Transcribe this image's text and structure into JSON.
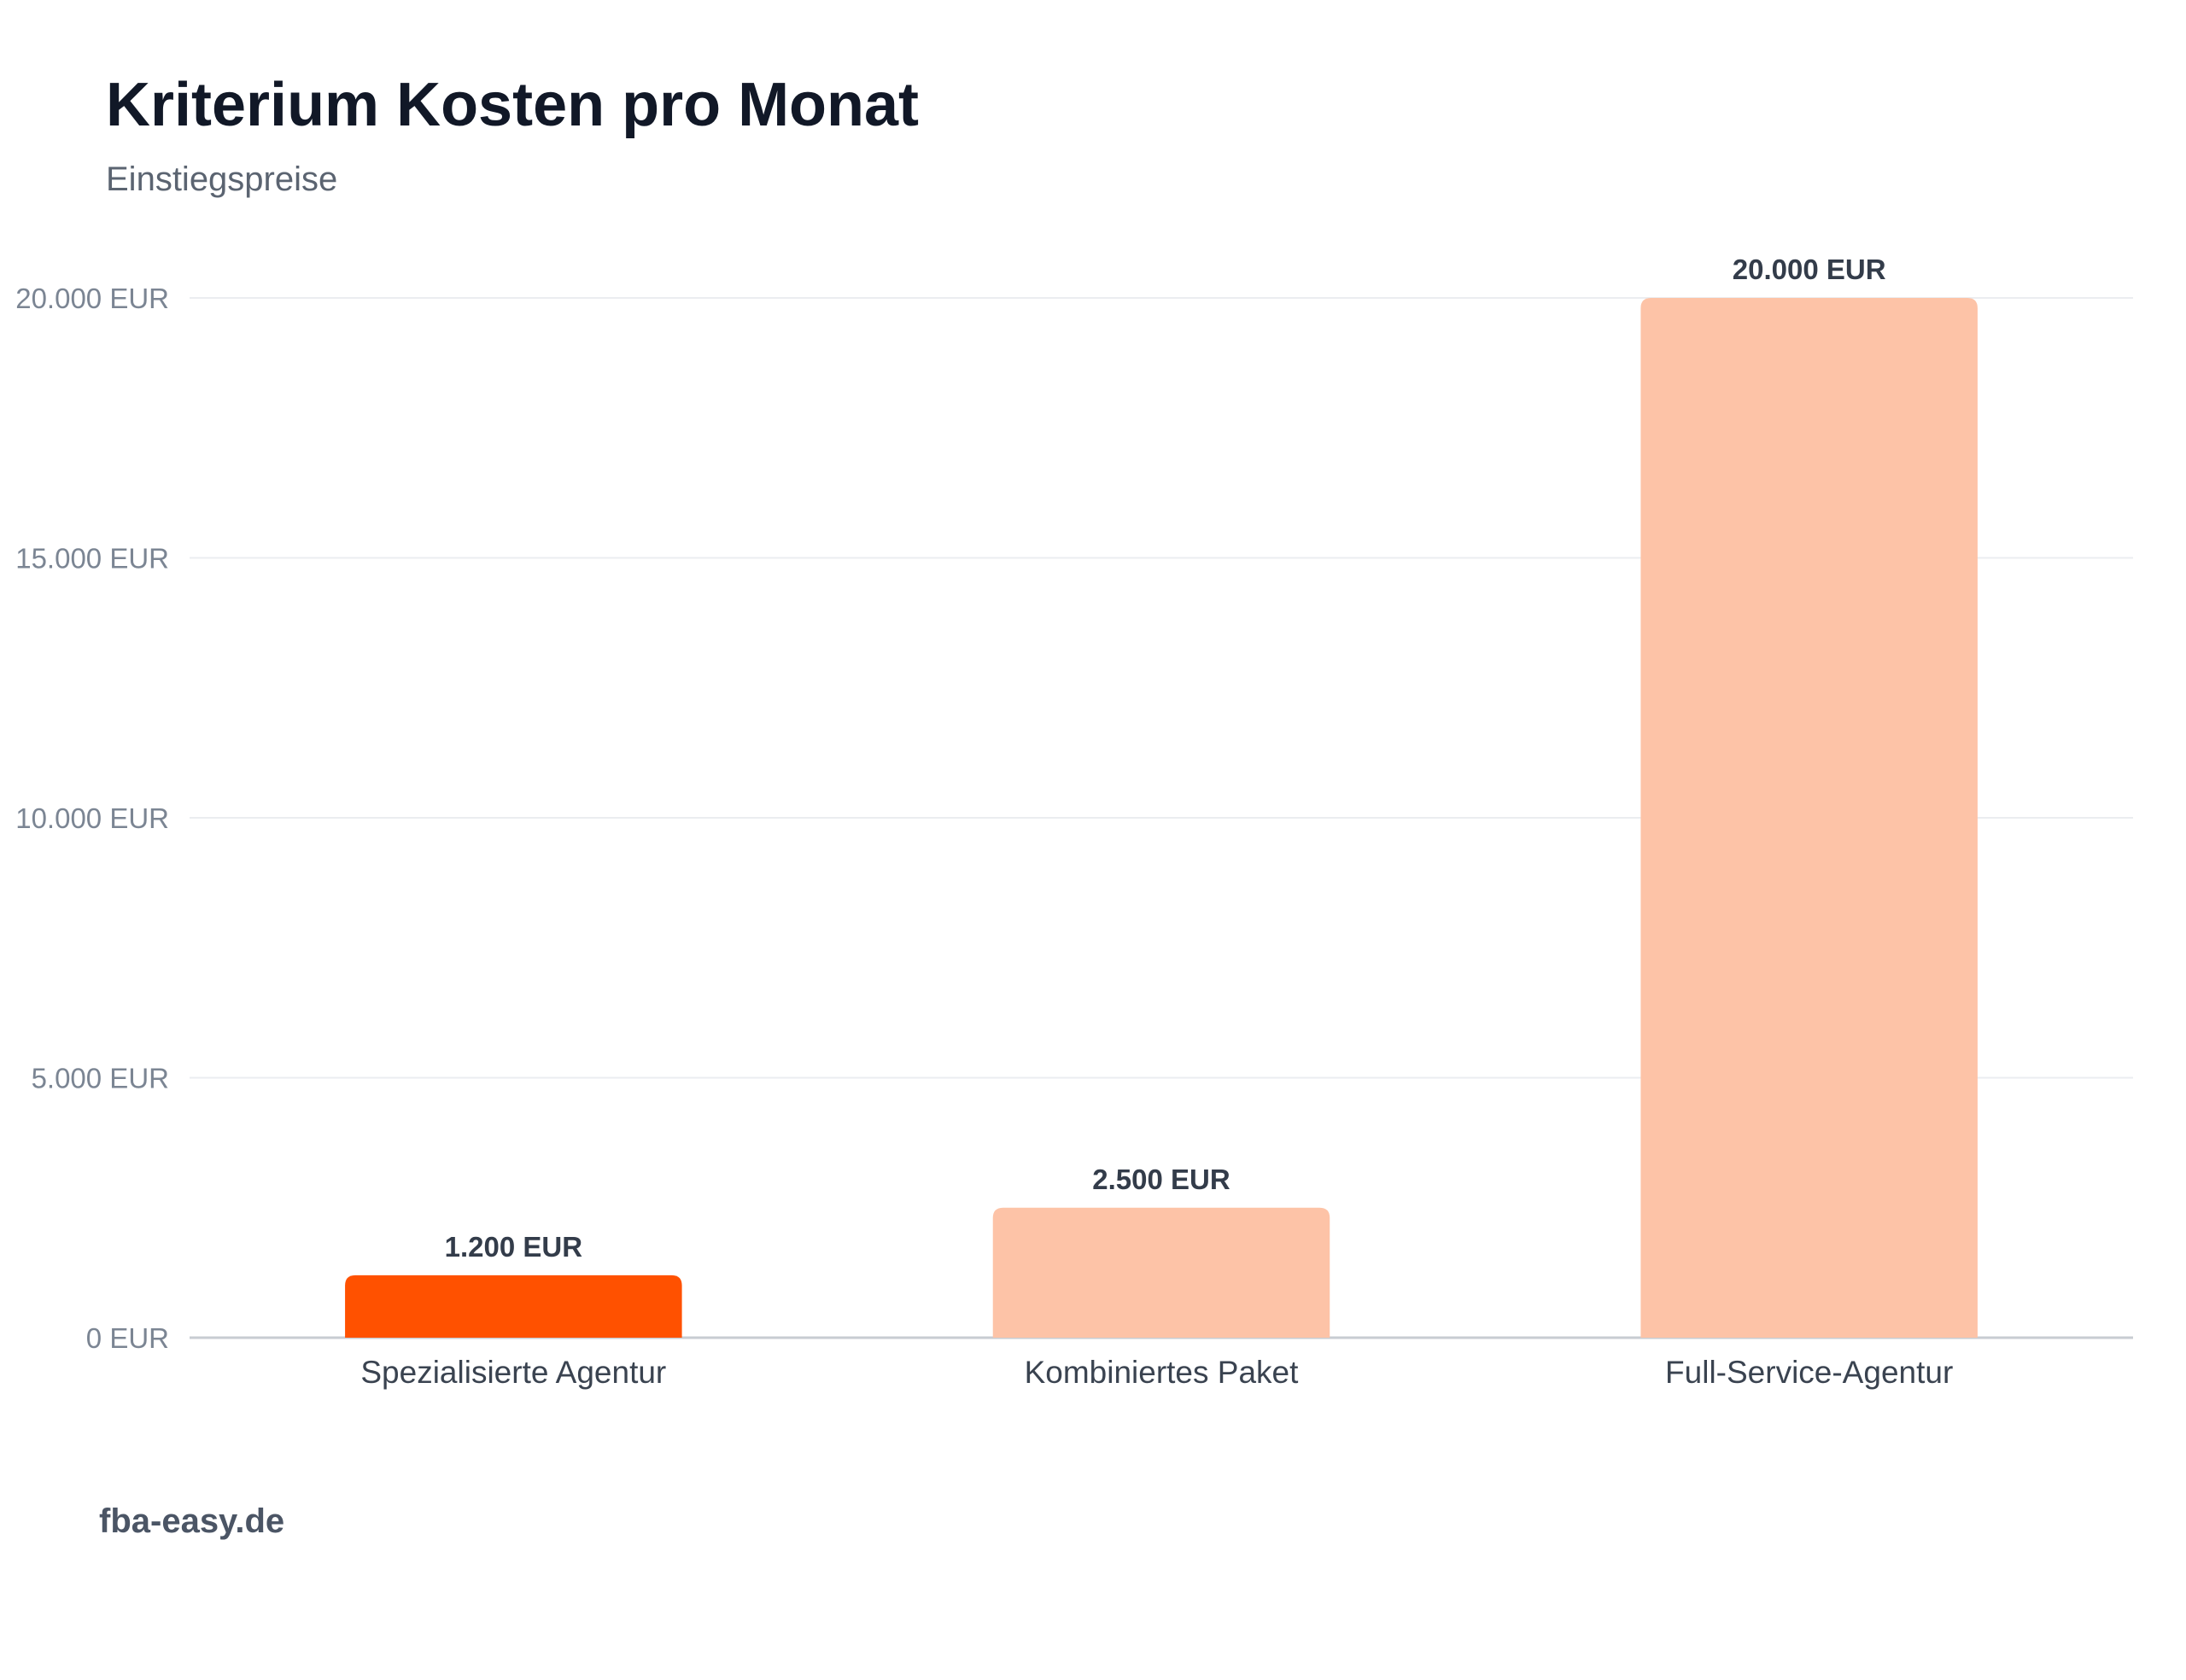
{
  "header": {
    "title": "Kriterium Kosten pro Monat",
    "subtitle": "Einstiegspreise"
  },
  "footer": {
    "brand": "fba-easy.de"
  },
  "colors": {
    "highlight": "#ff5100",
    "bar": "#fdc3a7",
    "grid": "#ebedf0",
    "axis": "#c8ccd2"
  },
  "chart_data": {
    "type": "bar",
    "title": "Kriterium Kosten pro Monat",
    "subtitle": "Einstiegspreise",
    "xlabel": "",
    "ylabel": "",
    "categories": [
      "Spezialisierte Agentur",
      "Kombiniertes Paket",
      "Full-Service-Agentur"
    ],
    "values": [
      1200,
      2500,
      20000
    ],
    "value_labels": [
      "1.200 EUR",
      "2.500 EUR",
      "20.000 EUR"
    ],
    "highlight_index": 0,
    "ylim": [
      0,
      20000
    ],
    "y_ticks": [
      0,
      5000,
      10000,
      15000,
      20000
    ],
    "y_tick_labels": [
      "0 EUR",
      "5.000 EUR",
      "10.000 EUR",
      "15.000 EUR",
      "20.000 EUR"
    ],
    "grid": true,
    "legend": "none"
  }
}
